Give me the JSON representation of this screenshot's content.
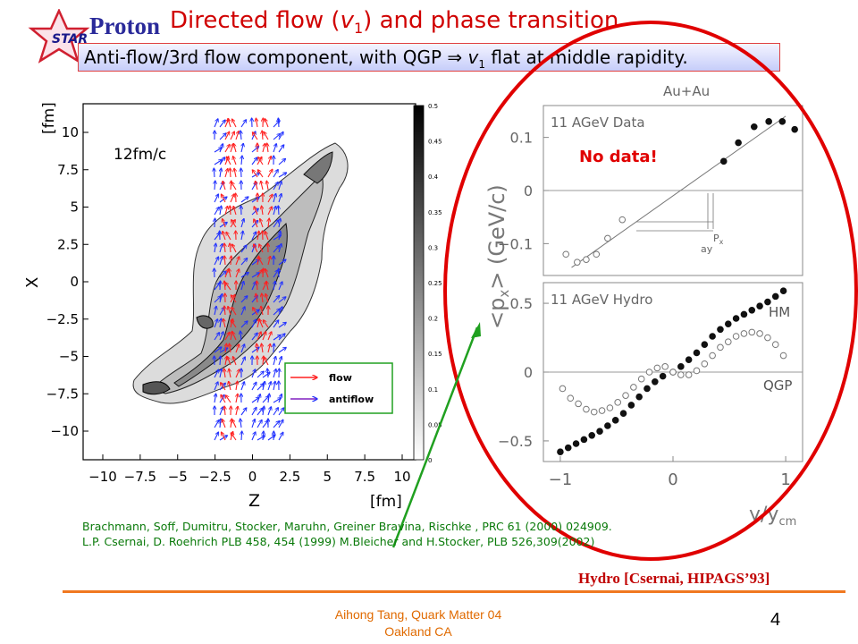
{
  "header": {
    "logo_text": "STAR",
    "proton_label": "Proton",
    "title_pre": "Directed flow (",
    "title_var": "v",
    "title_sub": "1",
    "title_post": ") and phase transition",
    "subtitle_pre": "Anti-flow/3rd flow component, with QGP",
    "subtitle_arrow": "⇒",
    "subtitle_var": "v",
    "subtitle_sub": "1",
    "subtitle_post": "flat at middle rapidity."
  },
  "colors": {
    "title": "#d00000",
    "proton": "#2a2a9a",
    "circle": "#e00000",
    "flow": "#ff2020",
    "antiflow": "#2030ff",
    "refs": "#0a7a0a",
    "footer": "#e06a00",
    "green_arrow": "#20a020"
  },
  "left_panel": {
    "time_label": "12fm/c",
    "xlabel": "Z",
    "xunit": "[fm]",
    "ylabel": "X",
    "yunit": "[fm]",
    "xticks": [
      "−10",
      "−7.5",
      "−5",
      "−2.5",
      "0",
      "2.5",
      "5",
      "7.5",
      "10"
    ],
    "yticks": [
      "10",
      "7.5",
      "5",
      "2.5",
      "0",
      "−2.5",
      "−5",
      "−7.5",
      "−10"
    ],
    "colorbar_ticks": [
      "0.5",
      "0.45",
      "0.4",
      "0.35",
      "0.3",
      "0.25",
      "0.2",
      "0.15",
      "0.1",
      "0.05",
      "0"
    ],
    "legend": [
      {
        "label": "flow",
        "icon": "red-arrow"
      },
      {
        "label": "antiflow",
        "icon": "blue-arrow"
      }
    ]
  },
  "right_panel": {
    "system": "Au+Au",
    "ylabel": "<p",
    "ylabel_sub": "x",
    "ylabel_post": ">  (GeV/c)",
    "xlabel": "y/y",
    "xlabel_sub": "cm",
    "no_data": "No data!",
    "px_note": "P",
    "px_sub": "x",
    "ay_note": "ay"
  },
  "chart_data": [
    {
      "type": "scatter",
      "title": "11 AGeV Data",
      "xlabel": "y/y_cm",
      "ylabel": "<p_x> (GeV/c)",
      "xlim": [
        -1.15,
        1.15
      ],
      "ylim": [
        -0.16,
        0.16
      ],
      "yticks": [
        "0.1",
        "0",
        "−0.1"
      ],
      "series": [
        {
          "marker": "open",
          "x": [
            -0.95,
            -0.85,
            -0.77,
            -0.68,
            -0.58,
            -0.45
          ],
          "y": [
            -0.12,
            -0.135,
            -0.13,
            -0.12,
            -0.09,
            -0.055
          ]
        },
        {
          "marker": "filled",
          "x": [
            0.45,
            0.58,
            0.72,
            0.85,
            0.97,
            1.08
          ],
          "y": [
            0.055,
            0.09,
            0.12,
            0.13,
            0.13,
            0.115
          ]
        }
      ],
      "reference_line": {
        "x": [
          -0.9,
          1.0
        ],
        "y": [
          -0.145,
          0.14
        ]
      }
    },
    {
      "type": "scatter",
      "title": "11 AGeV Hydro",
      "xlabel": "y/y_cm",
      "ylabel": "<p_x> (GeV/c)",
      "xlim": [
        -1.15,
        1.15
      ],
      "ylim": [
        -0.65,
        0.65
      ],
      "yticks": [
        "0.5",
        "0",
        "−0.5"
      ],
      "xticks": [
        "−1",
        "0",
        "1"
      ],
      "series": [
        {
          "name": "HM",
          "marker": "filled",
          "x": [
            -1.0,
            -0.93,
            -0.86,
            -0.79,
            -0.72,
            -0.65,
            -0.58,
            -0.51,
            -0.44,
            -0.37,
            -0.3,
            -0.23,
            -0.16,
            -0.09,
            0.0,
            0.07,
            0.14,
            0.21,
            0.28,
            0.35,
            0.42,
            0.49,
            0.56,
            0.63,
            0.7,
            0.77,
            0.84,
            0.91,
            0.98
          ],
          "y": [
            -0.58,
            -0.55,
            -0.52,
            -0.49,
            -0.46,
            -0.43,
            -0.39,
            -0.35,
            -0.3,
            -0.24,
            -0.18,
            -0.12,
            -0.07,
            -0.03,
            0.0,
            0.04,
            0.09,
            0.14,
            0.2,
            0.26,
            0.31,
            0.35,
            0.39,
            0.42,
            0.45,
            0.48,
            0.51,
            0.55,
            0.59
          ]
        },
        {
          "name": "QGP",
          "marker": "open",
          "x": [
            -0.98,
            -0.91,
            -0.84,
            -0.77,
            -0.7,
            -0.63,
            -0.56,
            -0.49,
            -0.42,
            -0.35,
            -0.28,
            -0.21,
            -0.14,
            -0.07,
            0.0,
            0.07,
            0.14,
            0.21,
            0.28,
            0.35,
            0.42,
            0.49,
            0.56,
            0.63,
            0.7,
            0.77,
            0.84,
            0.91,
            0.98
          ],
          "y": [
            -0.12,
            -0.19,
            -0.23,
            -0.27,
            -0.29,
            -0.28,
            -0.26,
            -0.22,
            -0.17,
            -0.11,
            -0.05,
            0.0,
            0.03,
            0.04,
            0.0,
            -0.02,
            -0.02,
            0.01,
            0.06,
            0.12,
            0.18,
            0.22,
            0.26,
            0.28,
            0.29,
            0.28,
            0.25,
            0.2,
            0.12
          ]
        }
      ]
    }
  ],
  "references": {
    "line1": "Brachmann, Soff, Dumitru, Stocker, Maruhn, Greiner Bravina, Rischke ,  PRC 61 (2000) 024909.",
    "line2": "L.P. Csernai, D. Roehrich PLB 458, 454 (1999)    M.Bleicher and H.Stocker, PLB 526,309(2002)"
  },
  "hydro_ref": "Hydro [Csernai, HIPAGS’93]",
  "footer": {
    "line1": "Aihong Tang, Quark Matter 04",
    "line2": "Oakland CA",
    "page": "4"
  }
}
